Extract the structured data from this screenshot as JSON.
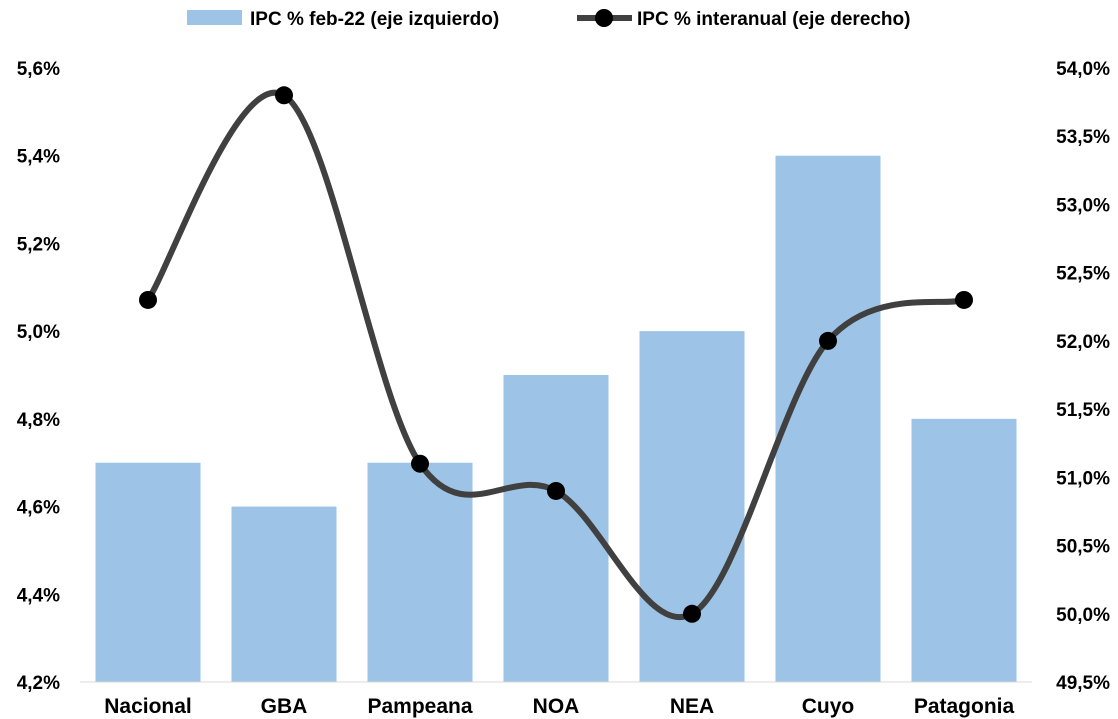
{
  "chart_data": {
    "type": "bar",
    "categories": [
      "Nacional",
      "GBA",
      "Pampeana",
      "NOA",
      "NEA",
      "Cuyo",
      "Patagonia"
    ],
    "series": [
      {
        "name": "IPC % feb-22 (eje izquierdo)",
        "type": "bar",
        "axis": "left",
        "values": [
          4.7,
          4.6,
          4.7,
          4.9,
          5.0,
          5.4,
          4.8
        ],
        "color": "#9DC3E6"
      },
      {
        "name": "IPC % interanual (eje derecho)",
        "type": "line",
        "axis": "right",
        "smooth": true,
        "values": [
          52.3,
          53.8,
          51.1,
          50.9,
          50.0,
          52.0,
          52.3
        ],
        "color": "#404040"
      }
    ],
    "y_left": {
      "ylim": [
        4.2,
        5.6
      ],
      "ticks": [
        "4,2%",
        "4,4%",
        "4,6%",
        "4,8%",
        "5,0%",
        "5,2%",
        "5,4%",
        "5,6%"
      ]
    },
    "y_right": {
      "ylim": [
        49.5,
        54.0
      ],
      "ticks": [
        "49,5%",
        "50,0%",
        "50,5%",
        "51,0%",
        "51,5%",
        "52,0%",
        "52,5%",
        "53,0%",
        "53,5%",
        "54,0%"
      ]
    },
    "legend_position": "top",
    "grid": false
  }
}
